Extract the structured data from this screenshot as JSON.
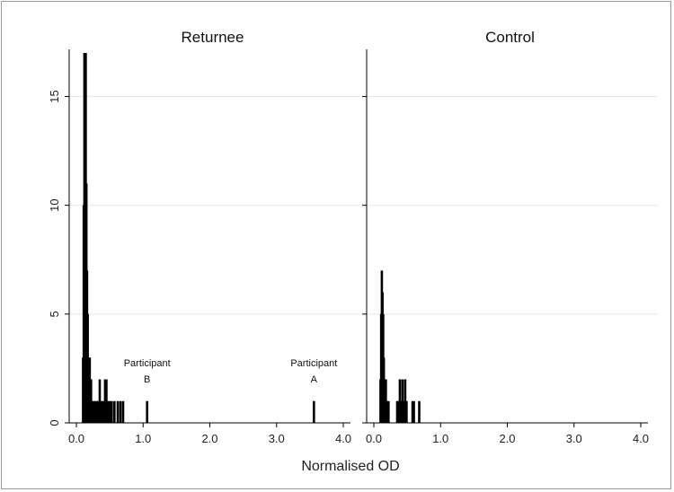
{
  "chart_data": {
    "type": "bar",
    "xlabel": "Normalised OD",
    "xticks": [
      "0.0",
      "1.0",
      "2.0",
      "3.0",
      "4.0"
    ],
    "yticks": [
      "0",
      "5",
      "10",
      "15"
    ],
    "xlim": [
      0,
      4
    ],
    "ylim": [
      0,
      17
    ],
    "grid": true,
    "colors": {
      "bars": "#000000",
      "grid": "#e8e8e8",
      "axis": "#000000"
    },
    "panels": [
      {
        "title": "Returnee",
        "bars": [
          {
            "x": 0.1,
            "y": 3
          },
          {
            "x": 0.11,
            "y": 10
          },
          {
            "x": 0.12,
            "y": 17
          },
          {
            "x": 0.13,
            "y": 15
          },
          {
            "x": 0.14,
            "y": 17
          },
          {
            "x": 0.15,
            "y": 11
          },
          {
            "x": 0.16,
            "y": 7
          },
          {
            "x": 0.17,
            "y": 5
          },
          {
            "x": 0.18,
            "y": 3
          },
          {
            "x": 0.19,
            "y": 3
          },
          {
            "x": 0.2,
            "y": 3
          },
          {
            "x": 0.21,
            "y": 2
          },
          {
            "x": 0.22,
            "y": 2
          },
          {
            "x": 0.23,
            "y": 1
          },
          {
            "x": 0.25,
            "y": 1
          },
          {
            "x": 0.27,
            "y": 1
          },
          {
            "x": 0.29,
            "y": 1
          },
          {
            "x": 0.31,
            "y": 1
          },
          {
            "x": 0.33,
            "y": 1
          },
          {
            "x": 0.35,
            "y": 2
          },
          {
            "x": 0.37,
            "y": 1
          },
          {
            "x": 0.39,
            "y": 1
          },
          {
            "x": 0.41,
            "y": 1
          },
          {
            "x": 0.43,
            "y": 2
          },
          {
            "x": 0.45,
            "y": 2
          },
          {
            "x": 0.47,
            "y": 1
          },
          {
            "x": 0.49,
            "y": 1
          },
          {
            "x": 0.51,
            "y": 1
          },
          {
            "x": 0.53,
            "y": 1
          },
          {
            "x": 0.57,
            "y": 1
          },
          {
            "x": 0.62,
            "y": 1
          },
          {
            "x": 0.66,
            "y": 1
          },
          {
            "x": 0.7,
            "y": 1
          },
          {
            "x": 1.06,
            "y": 1
          },
          {
            "x": 3.56,
            "y": 1
          }
        ],
        "annotations": [
          {
            "line1": "Participant",
            "line2": "B",
            "x": 1.06,
            "y": 1
          },
          {
            "line1": "Participant",
            "line2": "A",
            "x": 3.56,
            "y": 1
          }
        ]
      },
      {
        "title": "Control",
        "bars": [
          {
            "x": 0.1,
            "y": 2
          },
          {
            "x": 0.11,
            "y": 5
          },
          {
            "x": 0.12,
            "y": 7
          },
          {
            "x": 0.13,
            "y": 6
          },
          {
            "x": 0.14,
            "y": 5
          },
          {
            "x": 0.15,
            "y": 3
          },
          {
            "x": 0.16,
            "y": 2
          },
          {
            "x": 0.17,
            "y": 2
          },
          {
            "x": 0.18,
            "y": 2
          },
          {
            "x": 0.2,
            "y": 1
          },
          {
            "x": 0.22,
            "y": 1
          },
          {
            "x": 0.35,
            "y": 1
          },
          {
            "x": 0.37,
            "y": 1
          },
          {
            "x": 0.39,
            "y": 2
          },
          {
            "x": 0.41,
            "y": 1
          },
          {
            "x": 0.43,
            "y": 2
          },
          {
            "x": 0.45,
            "y": 1
          },
          {
            "x": 0.47,
            "y": 2
          },
          {
            "x": 0.49,
            "y": 1
          },
          {
            "x": 0.58,
            "y": 1
          },
          {
            "x": 0.6,
            "y": 1
          },
          {
            "x": 0.68,
            "y": 1
          }
        ],
        "annotations": []
      }
    ]
  }
}
